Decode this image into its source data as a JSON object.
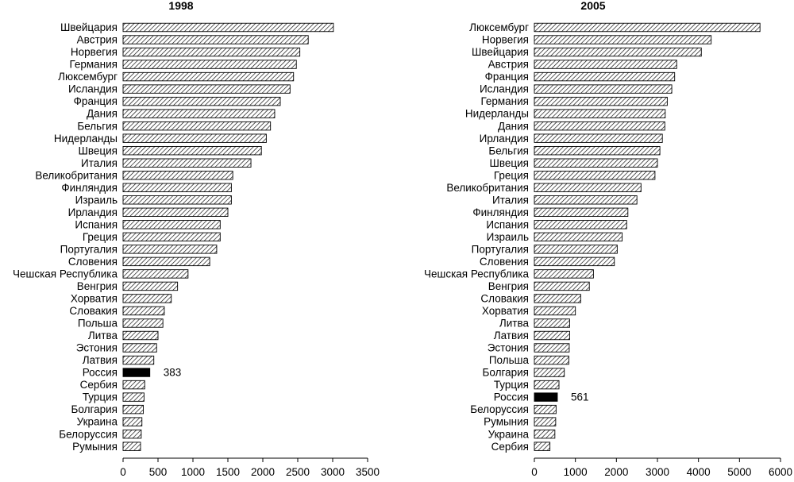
{
  "chart_data": [
    {
      "type": "bar",
      "orientation": "horizontal",
      "title": "1998",
      "xlim": [
        0,
        3500
      ],
      "xticks": [
        0,
        500,
        1000,
        1500,
        2000,
        2500,
        3000,
        3500
      ],
      "highlight": "Россия",
      "highlight_label": "383",
      "categories": [
        "Швейцария",
        "Австрия",
        "Норвегия",
        "Германия",
        "Люксембург",
        "Исландия",
        "Франция",
        "Дания",
        "Бельгия",
        "Нидерланды",
        "Швеция",
        "Италия",
        "Великобритания",
        "Финляндия",
        "Израиль",
        "Ирландия",
        "Испания",
        "Греция",
        "Португалия",
        "Словения",
        "Чешская Республика",
        "Венгрия",
        "Хорватия",
        "Словакия",
        "Польша",
        "Литва",
        "Эстония",
        "Латвия",
        "Россия",
        "Сербия",
        "Турция",
        "Болгария",
        "Украина",
        "Белоруссия",
        "Румыния"
      ],
      "values": [
        3010,
        2650,
        2530,
        2480,
        2440,
        2390,
        2250,
        2170,
        2110,
        2050,
        1980,
        1830,
        1570,
        1550,
        1550,
        1500,
        1390,
        1390,
        1340,
        1240,
        930,
        780,
        690,
        590,
        570,
        500,
        480,
        440,
        383,
        310,
        300,
        290,
        270,
        260,
        250
      ]
    },
    {
      "type": "bar",
      "orientation": "horizontal",
      "title": "2005",
      "xlim": [
        0,
        6000
      ],
      "xticks": [
        0,
        1000,
        2000,
        3000,
        4000,
        5000,
        6000
      ],
      "highlight": "Россия",
      "highlight_label": "561",
      "categories": [
        "Люксембург",
        "Норвегия",
        "Швейцария",
        "Австрия",
        "Франция",
        "Исландия",
        "Германия",
        "Нидерланды",
        "Дания",
        "Ирландия",
        "Бельгия",
        "Швеция",
        "Греция",
        "Великобритания",
        "Италия",
        "Финляндия",
        "Испания",
        "Израиль",
        "Португалия",
        "Словения",
        "Чешская Республика",
        "Венгрия",
        "Словакия",
        "Хорватия",
        "Литва",
        "Латвия",
        "Эстония",
        "Польша",
        "Болгария",
        "Турция",
        "Россия",
        "Белоруссия",
        "Румыния",
        "Украина",
        "Сербия"
      ],
      "values": [
        5500,
        4310,
        4070,
        3470,
        3420,
        3350,
        3240,
        3190,
        3180,
        3120,
        3060,
        3000,
        2940,
        2600,
        2500,
        2280,
        2250,
        2140,
        2020,
        1950,
        1440,
        1340,
        1130,
        1000,
        860,
        860,
        850,
        840,
        730,
        600,
        561,
        530,
        520,
        500,
        380
      ]
    }
  ]
}
